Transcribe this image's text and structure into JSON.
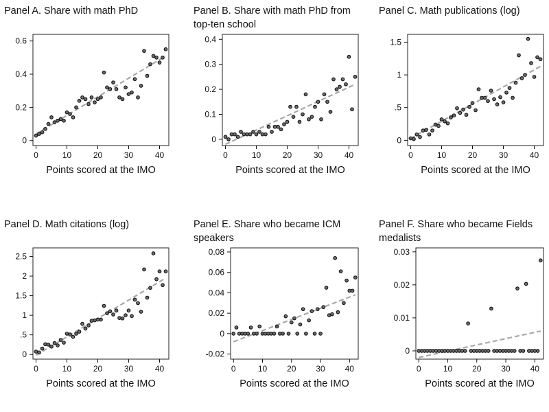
{
  "chart_data": [
    {
      "id": "A",
      "type": "scatter",
      "title": "Panel A. Share with math PhD",
      "xlabel": "Points scored at the IMO",
      "xlim": [
        -1,
        43
      ],
      "ylim": [
        -0.03,
        0.64
      ],
      "xticks": [
        0,
        10,
        20,
        30,
        40
      ],
      "yticks": [
        0,
        0.2,
        0.4,
        0.6
      ],
      "ytick_labels": [
        "0",
        "0.2",
        "0.4",
        "0.6"
      ],
      "fit": [
        [
          0,
          0.04
        ],
        [
          42,
          0.51
        ]
      ],
      "points": [
        [
          0,
          0.03
        ],
        [
          1,
          0.04
        ],
        [
          2,
          0.05
        ],
        [
          3,
          0.07
        ],
        [
          4,
          0.1
        ],
        [
          5,
          0.14
        ],
        [
          6,
          0.11
        ],
        [
          7,
          0.12
        ],
        [
          8,
          0.13
        ],
        [
          9,
          0.12
        ],
        [
          10,
          0.17
        ],
        [
          11,
          0.16
        ],
        [
          12,
          0.14
        ],
        [
          13,
          0.2
        ],
        [
          14,
          0.24
        ],
        [
          15,
          0.26
        ],
        [
          16,
          0.25
        ],
        [
          17,
          0.22
        ],
        [
          18,
          0.26
        ],
        [
          19,
          0.23
        ],
        [
          20,
          0.25
        ],
        [
          21,
          0.26
        ],
        [
          22,
          0.41
        ],
        [
          23,
          0.32
        ],
        [
          24,
          0.31
        ],
        [
          25,
          0.35
        ],
        [
          26,
          0.31
        ],
        [
          27,
          0.26
        ],
        [
          28,
          0.25
        ],
        [
          29,
          0.32
        ],
        [
          30,
          0.28
        ],
        [
          31,
          0.29
        ],
        [
          32,
          0.37
        ],
        [
          33,
          0.26
        ],
        [
          34,
          0.33
        ],
        [
          35,
          0.54
        ],
        [
          36,
          0.39
        ],
        [
          37,
          0.46
        ],
        [
          38,
          0.51
        ],
        [
          39,
          0.5
        ],
        [
          40,
          0.47
        ],
        [
          41,
          0.5
        ],
        [
          42,
          0.55
        ]
      ]
    },
    {
      "id": "B",
      "type": "scatter",
      "title": "Panel B. Share with math PhD from top-ten school",
      "xlabel": "Points scored at the IMO",
      "xlim": [
        -1,
        43
      ],
      "ylim": [
        -0.025,
        0.42
      ],
      "xticks": [
        0,
        10,
        20,
        30,
        40
      ],
      "yticks": [
        0,
        0.1,
        0.2,
        0.3,
        0.4
      ],
      "ytick_labels": [
        "0",
        "0.1",
        "0.2",
        "0.3",
        "0.4"
      ],
      "fit": [
        [
          0,
          -0.02
        ],
        [
          42,
          0.22
        ]
      ],
      "points": [
        [
          0,
          0.01
        ],
        [
          1,
          0.0
        ],
        [
          2,
          0.02
        ],
        [
          3,
          0.02
        ],
        [
          4,
          0.01
        ],
        [
          5,
          0.03
        ],
        [
          6,
          0.02
        ],
        [
          7,
          0.02
        ],
        [
          8,
          0.02
        ],
        [
          9,
          0.03
        ],
        [
          10,
          0.02
        ],
        [
          11,
          0.03
        ],
        [
          12,
          0.02
        ],
        [
          13,
          0.02
        ],
        [
          14,
          0.05
        ],
        [
          15,
          0.03
        ],
        [
          16,
          0.05
        ],
        [
          17,
          0.05
        ],
        [
          18,
          0.04
        ],
        [
          19,
          0.06
        ],
        [
          20,
          0.07
        ],
        [
          21,
          0.13
        ],
        [
          22,
          0.09
        ],
        [
          23,
          0.13
        ],
        [
          24,
          0.07
        ],
        [
          25,
          0.1
        ],
        [
          26,
          0.18
        ],
        [
          27,
          0.08
        ],
        [
          28,
          0.09
        ],
        [
          29,
          0.13
        ],
        [
          30,
          0.15
        ],
        [
          31,
          0.08
        ],
        [
          32,
          0.18
        ],
        [
          33,
          0.15
        ],
        [
          34,
          0.11
        ],
        [
          35,
          0.24
        ],
        [
          36,
          0.2
        ],
        [
          37,
          0.21
        ],
        [
          38,
          0.24
        ],
        [
          39,
          0.22
        ],
        [
          40,
          0.33
        ],
        [
          41,
          0.12
        ],
        [
          42,
          0.25
        ]
      ]
    },
    {
      "id": "C",
      "type": "scatter",
      "title": "Panel C. Math publications (log)",
      "xlabel": "Points scored at the IMO",
      "xlim": [
        -1,
        43
      ],
      "ylim": [
        -0.08,
        1.62
      ],
      "xticks": [
        0,
        10,
        20,
        30,
        40
      ],
      "yticks": [
        0,
        0.5,
        1,
        1.5
      ],
      "ytick_labels": [
        "0",
        ".5",
        "1",
        "1.5"
      ],
      "fit": [
        [
          0,
          0.03
        ],
        [
          42,
          1.13
        ]
      ],
      "points": [
        [
          0,
          0.03
        ],
        [
          1,
          0.02
        ],
        [
          2,
          0.09
        ],
        [
          3,
          0.05
        ],
        [
          4,
          0.15
        ],
        [
          5,
          0.16
        ],
        [
          6,
          0.09
        ],
        [
          7,
          0.15
        ],
        [
          8,
          0.24
        ],
        [
          9,
          0.22
        ],
        [
          10,
          0.32
        ],
        [
          11,
          0.29
        ],
        [
          12,
          0.26
        ],
        [
          13,
          0.35
        ],
        [
          14,
          0.38
        ],
        [
          15,
          0.49
        ],
        [
          16,
          0.42
        ],
        [
          17,
          0.47
        ],
        [
          18,
          0.39
        ],
        [
          19,
          0.51
        ],
        [
          20,
          0.57
        ],
        [
          21,
          0.46
        ],
        [
          22,
          0.78
        ],
        [
          23,
          0.65
        ],
        [
          24,
          0.65
        ],
        [
          25,
          0.6
        ],
        [
          26,
          0.76
        ],
        [
          27,
          0.63
        ],
        [
          28,
          0.55
        ],
        [
          29,
          0.66
        ],
        [
          30,
          0.58
        ],
        [
          31,
          0.73
        ],
        [
          32,
          0.8
        ],
        [
          33,
          0.65
        ],
        [
          34,
          0.88
        ],
        [
          35,
          1.3
        ],
        [
          36,
          0.95
        ],
        [
          37,
          1.0
        ],
        [
          38,
          1.55
        ],
        [
          39,
          1.18
        ],
        [
          40,
          0.97
        ],
        [
          41,
          1.27
        ],
        [
          42,
          1.24
        ]
      ]
    },
    {
      "id": "D",
      "type": "scatter",
      "title": "Panel D. Math citations (log)",
      "xlabel": "Points scored at the IMO",
      "xlim": [
        -1,
        43
      ],
      "ylim": [
        -0.12,
        2.72
      ],
      "xticks": [
        0,
        10,
        20,
        30,
        40
      ],
      "yticks": [
        0,
        0.5,
        1,
        1.5,
        2,
        2.5
      ],
      "ytick_labels": [
        "0",
        ".5",
        "1",
        "1.5",
        "2",
        "2.5"
      ],
      "fit": [
        [
          0,
          -0.02
        ],
        [
          42,
          1.95
        ]
      ],
      "points": [
        [
          0,
          0.07
        ],
        [
          1,
          0.05
        ],
        [
          2,
          0.15
        ],
        [
          3,
          0.26
        ],
        [
          4,
          0.25
        ],
        [
          5,
          0.2
        ],
        [
          6,
          0.29
        ],
        [
          7,
          0.23
        ],
        [
          8,
          0.37
        ],
        [
          9,
          0.3
        ],
        [
          10,
          0.53
        ],
        [
          11,
          0.51
        ],
        [
          12,
          0.45
        ],
        [
          13,
          0.53
        ],
        [
          14,
          0.58
        ],
        [
          15,
          0.78
        ],
        [
          16,
          0.66
        ],
        [
          17,
          0.74
        ],
        [
          18,
          0.86
        ],
        [
          19,
          0.87
        ],
        [
          20,
          0.89
        ],
        [
          21,
          0.89
        ],
        [
          22,
          1.24
        ],
        [
          23,
          1.05
        ],
        [
          24,
          1.1
        ],
        [
          25,
          1.02
        ],
        [
          26,
          1.12
        ],
        [
          27,
          0.93
        ],
        [
          28,
          0.92
        ],
        [
          29,
          1.0
        ],
        [
          30,
          1.12
        ],
        [
          31,
          0.98
        ],
        [
          32,
          1.4
        ],
        [
          33,
          1.31
        ],
        [
          34,
          1.09
        ],
        [
          35,
          2.17
        ],
        [
          36,
          1.45
        ],
        [
          37,
          1.7
        ],
        [
          38,
          2.58
        ],
        [
          39,
          1.92
        ],
        [
          40,
          2.12
        ],
        [
          41,
          1.77
        ],
        [
          42,
          2.12
        ]
      ]
    },
    {
      "id": "E",
      "type": "scatter",
      "title": "Panel E. Share who became ICM speakers",
      "xlabel": "Points scored at the IMO",
      "xlim": [
        -1,
        43
      ],
      "ylim": [
        -0.025,
        0.084
      ],
      "xticks": [
        0,
        10,
        20,
        30,
        40
      ],
      "yticks": [
        -0.02,
        0,
        0.02,
        0.04,
        0.06,
        0.08
      ],
      "ytick_labels": [
        "-0.02",
        "0",
        "0.02",
        "0.04",
        "0.06",
        "0.08"
      ],
      "fit": [
        [
          0,
          -0.008
        ],
        [
          42,
          0.038
        ]
      ],
      "points": [
        [
          0,
          0.0
        ],
        [
          1,
          0.006
        ],
        [
          2,
          0.0
        ],
        [
          3,
          0.0
        ],
        [
          4,
          0.0
        ],
        [
          5,
          0.0
        ],
        [
          6,
          0.006
        ],
        [
          7,
          0.0
        ],
        [
          8,
          0.0
        ],
        [
          9,
          0.007
        ],
        [
          10,
          0.0
        ],
        [
          11,
          0.0
        ],
        [
          12,
          0.0
        ],
        [
          13,
          0.0
        ],
        [
          14,
          0.0
        ],
        [
          15,
          0.007
        ],
        [
          16,
          0.0
        ],
        [
          17,
          0.0
        ],
        [
          18,
          0.017
        ],
        [
          19,
          0.0
        ],
        [
          20,
          0.011
        ],
        [
          21,
          0.015
        ],
        [
          22,
          0.0
        ],
        [
          23,
          0.009
        ],
        [
          24,
          0.024
        ],
        [
          25,
          0.0
        ],
        [
          26,
          0.013
        ],
        [
          27,
          0.022
        ],
        [
          28,
          0.0
        ],
        [
          29,
          0.024
        ],
        [
          30,
          0.0
        ],
        [
          31,
          0.026
        ],
        [
          32,
          0.045
        ],
        [
          33,
          0.018
        ],
        [
          34,
          0.019
        ],
        [
          35,
          0.074
        ],
        [
          36,
          0.021
        ],
        [
          37,
          0.061
        ],
        [
          38,
          0.03
        ],
        [
          39,
          0.052
        ],
        [
          40,
          0.042
        ],
        [
          41,
          0.042
        ],
        [
          42,
          0.055
        ]
      ]
    },
    {
      "id": "F",
      "type": "scatter",
      "title": "Panel F. Share who became Fields medalists",
      "xlabel": "Points scored at the IMO",
      "xlim": [
        -1,
        43
      ],
      "ylim": [
        -0.0025,
        0.0312
      ],
      "xticks": [
        0,
        10,
        20,
        30,
        40
      ],
      "yticks": [
        0,
        0.01,
        0.02,
        0.03
      ],
      "ytick_labels": [
        "0",
        "0.01",
        "0.02",
        "0.03"
      ],
      "fit": [
        [
          0,
          -0.002
        ],
        [
          42,
          0.006
        ]
      ],
      "points": [
        [
          0,
          0
        ],
        [
          1,
          0
        ],
        [
          2,
          0
        ],
        [
          3,
          0
        ],
        [
          4,
          0
        ],
        [
          5,
          0
        ],
        [
          6,
          0
        ],
        [
          7,
          0
        ],
        [
          8,
          0
        ],
        [
          9,
          0
        ],
        [
          10,
          0
        ],
        [
          11,
          0
        ],
        [
          12,
          0
        ],
        [
          13,
          0
        ],
        [
          14,
          0
        ],
        [
          15,
          0
        ],
        [
          16,
          0
        ],
        [
          17,
          0.0083
        ],
        [
          18,
          0
        ],
        [
          19,
          0
        ],
        [
          20,
          0
        ],
        [
          21,
          0
        ],
        [
          22,
          0
        ],
        [
          23,
          0
        ],
        [
          24,
          0
        ],
        [
          25,
          0.0128
        ],
        [
          26,
          0
        ],
        [
          27,
          0
        ],
        [
          28,
          0
        ],
        [
          29,
          0
        ],
        [
          30,
          0
        ],
        [
          31,
          0
        ],
        [
          32,
          0
        ],
        [
          33,
          0
        ],
        [
          34,
          0.0189
        ],
        [
          35,
          0
        ],
        [
          36,
          0
        ],
        [
          37,
          0.0203
        ],
        [
          38,
          0
        ],
        [
          39,
          0
        ],
        [
          40,
          0
        ],
        [
          41,
          0
        ],
        [
          42,
          0.0274
        ]
      ]
    }
  ]
}
